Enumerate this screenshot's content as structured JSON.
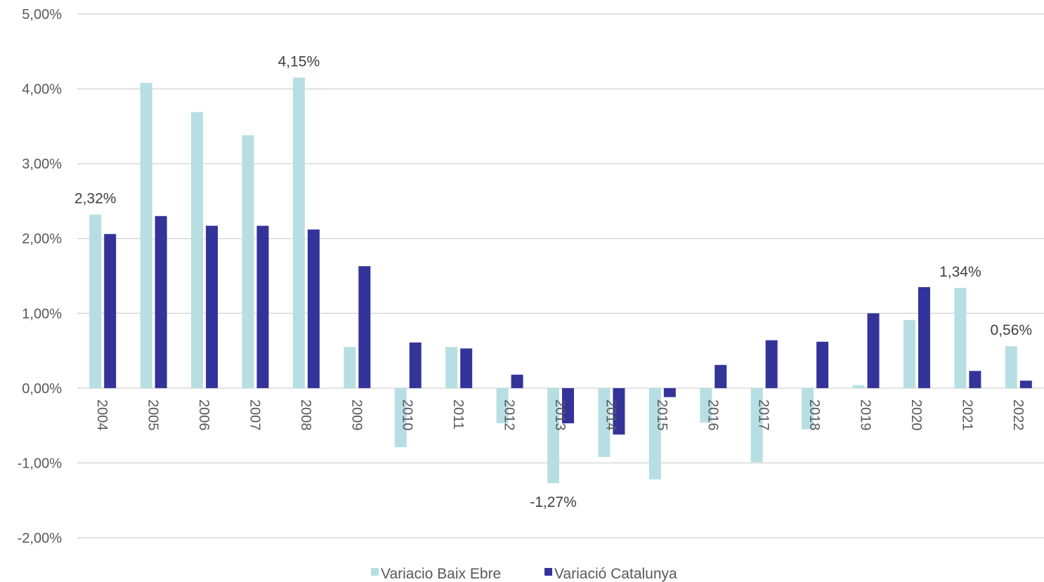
{
  "chart_data": {
    "type": "bar",
    "categories": [
      "2004",
      "2005",
      "2006",
      "2007",
      "2008",
      "2009",
      "2010",
      "2011",
      "2012",
      "2013",
      "2014",
      "2015",
      "2016",
      "2017",
      "2018",
      "2019",
      "2020",
      "2021",
      "2022"
    ],
    "series": [
      {
        "name": "Variacio Baix Ebre",
        "color": "#b7dfe3",
        "values": [
          2.32,
          4.08,
          3.69,
          3.38,
          4.15,
          0.55,
          -0.79,
          0.55,
          -0.47,
          -1.27,
          -0.92,
          -1.22,
          -0.46,
          -0.99,
          -0.55,
          0.04,
          0.91,
          1.34,
          0.56
        ]
      },
      {
        "name": "Variació Catalunya",
        "color": "#333399",
        "values": [
          2.06,
          2.3,
          2.17,
          2.17,
          2.12,
          1.63,
          0.61,
          0.53,
          0.18,
          -0.47,
          -0.62,
          -0.12,
          0.31,
          0.64,
          0.62,
          1.0,
          1.35,
          0.23,
          0.1
        ]
      }
    ],
    "data_labels": [
      {
        "series": 0,
        "index": 0,
        "text": "2,32%"
      },
      {
        "series": 0,
        "index": 4,
        "text": "4,15%"
      },
      {
        "series": 0,
        "index": 9,
        "text": "-1,27%"
      },
      {
        "series": 0,
        "index": 17,
        "text": "1,34%"
      },
      {
        "series": 0,
        "index": 18,
        "text": "0,56%"
      }
    ],
    "y_ticks": [
      {
        "value": 5,
        "label": "5,00%"
      },
      {
        "value": 4,
        "label": "4,00%"
      },
      {
        "value": 3,
        "label": "3,00%"
      },
      {
        "value": 2,
        "label": "2,00%"
      },
      {
        "value": 1,
        "label": "1,00%"
      },
      {
        "value": 0,
        "label": "0,00%"
      },
      {
        "value": -1,
        "label": "-1,00%"
      },
      {
        "value": -2,
        "label": "-2,00%"
      }
    ],
    "ylim": [
      -2,
      5
    ],
    "grid": true,
    "legend_position": "bottom",
    "title": "",
    "xlabel": "",
    "ylabel": ""
  }
}
